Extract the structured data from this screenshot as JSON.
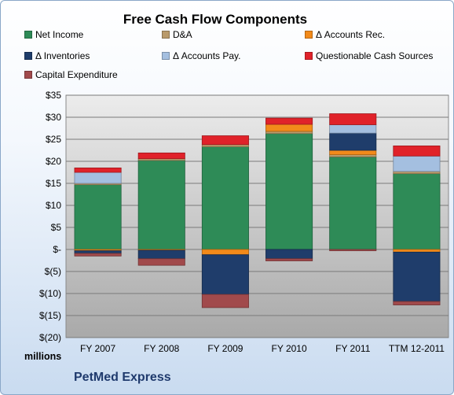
{
  "chart_data": {
    "type": "bar",
    "stacked": true,
    "title": "Free Cash Flow Components",
    "ylabel": "millions",
    "footer": "PetMed Express",
    "categories": [
      "FY 2007",
      "FY 2008",
      "FY 2009",
      "FY 2010",
      "FY 2011",
      "TTM 12-2011"
    ],
    "ylim": [
      -20,
      35
    ],
    "yticks": [
      "$35",
      "$30",
      "$25",
      "$20",
      "$15",
      "$10",
      "$5",
      "$-",
      "$(5)",
      "$(10)",
      "$(15)",
      "$(20)"
    ],
    "ytick_values": [
      35,
      30,
      25,
      20,
      15,
      10,
      5,
      0,
      -5,
      -10,
      -15,
      -20
    ],
    "grid": true,
    "legend_position": "top",
    "series": [
      {
        "name": "Net Income",
        "color": "#2e8b57",
        "values": [
          14.7,
          20.2,
          23.3,
          26.3,
          21.0,
          17.2
        ]
      },
      {
        "name": "D&A",
        "color": "#b99a6a",
        "values": [
          0.3,
          0.4,
          0.5,
          0.5,
          0.5,
          0.5
        ]
      },
      {
        "name": "Δ Accounts Rec.",
        "color": "#f28a1a",
        "values": [
          -0.3,
          -0.2,
          -1.2,
          1.6,
          1.0,
          -0.6
        ]
      },
      {
        "name": "Δ Inventories",
        "color": "#1f3d6b",
        "values": [
          -0.6,
          -1.9,
          -9.0,
          -2.1,
          3.9,
          -11.2
        ]
      },
      {
        "name": "Δ Accounts Pay.",
        "color": "#a4bfe0",
        "values": [
          2.5,
          0.0,
          0.0,
          0.0,
          1.9,
          3.5
        ]
      },
      {
        "name": "Questionable Cash Sources",
        "color": "#e0222a",
        "values": [
          1.0,
          1.3,
          2.0,
          1.4,
          2.5,
          2.3
        ]
      },
      {
        "name": "Capital Expenditure",
        "color": "#a14a4c",
        "values": [
          -0.6,
          -1.5,
          -3.0,
          -0.5,
          -0.3,
          -0.8
        ]
      }
    ]
  }
}
